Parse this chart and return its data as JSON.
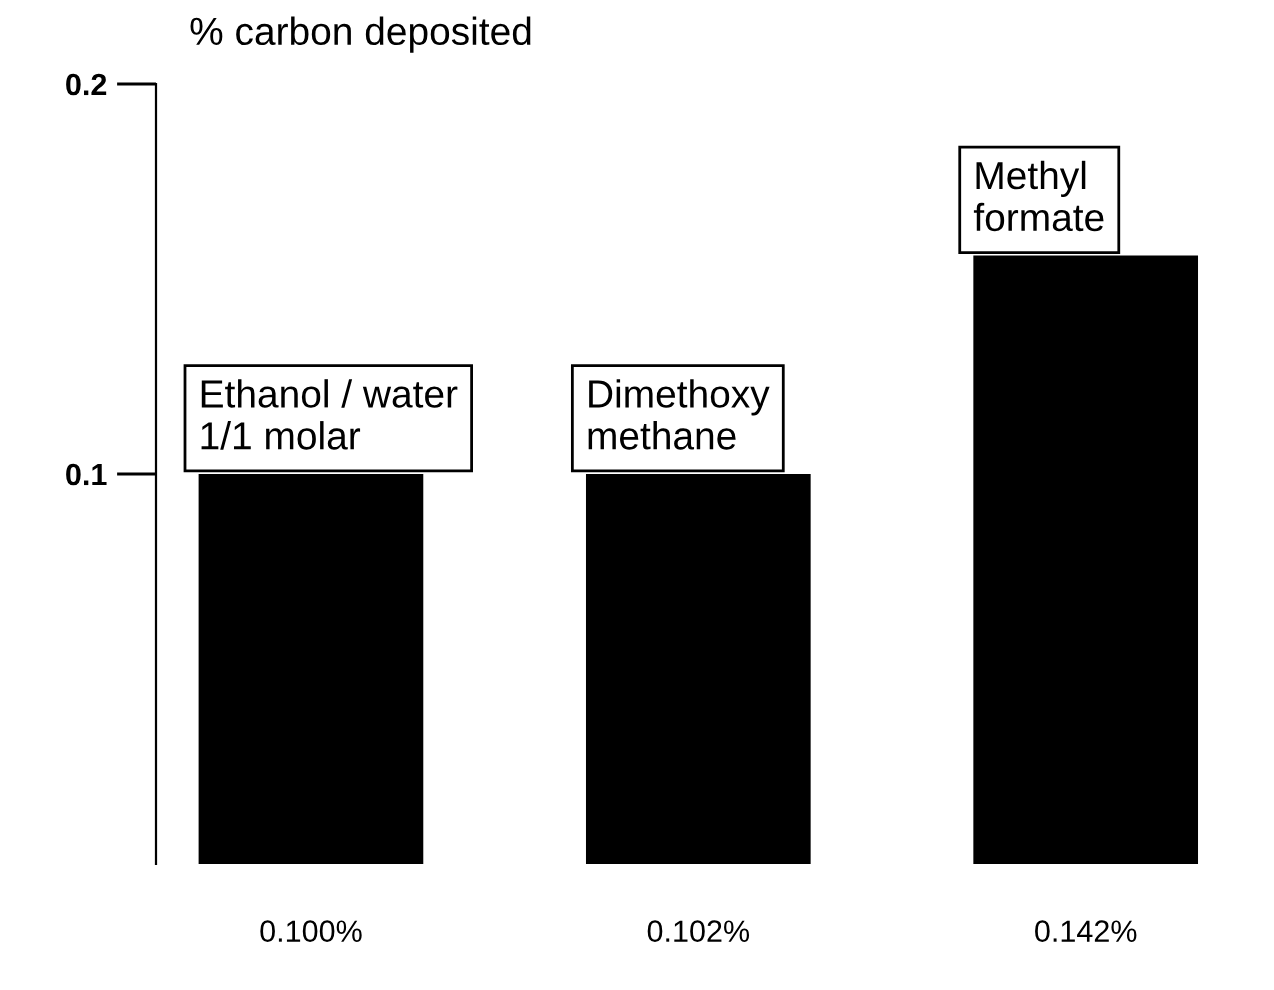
{
  "chart_data": {
    "type": "bar",
    "ylabel": "% carbon deposited",
    "categories": [
      "0.100%",
      "0.102%",
      "0.142%"
    ],
    "values": [
      0.1,
      0.1,
      0.156
    ],
    "color": "#000000",
    "ylim": [
      0,
      0.2
    ],
    "yticks": [
      {
        "value": 0.1,
        "label": "0.1"
      },
      {
        "value": 0.2,
        "label": "0.2"
      }
    ],
    "grid": false,
    "annotations": [
      {
        "text": "Ethanol / water\n1/1 molar",
        "x": "0.100%",
        "y": 0.1
      },
      {
        "text": "Dimethoxy\nmethane",
        "x": "0.102%",
        "y": 0.1
      },
      {
        "text": "Methyl\nformate",
        "x": "0.142%",
        "y": 0.156
      }
    ]
  }
}
